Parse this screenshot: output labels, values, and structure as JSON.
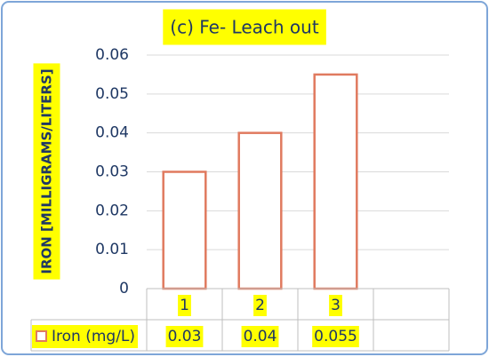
{
  "chart_data": {
    "type": "bar",
    "title": "(c) Fe- Leach out",
    "y_label": "IRON [MILLIGRAMS/LITERS]",
    "categories": [
      "1",
      "2",
      "3",
      null
    ],
    "series": [
      {
        "name": "Iron (mg/L)",
        "color": "#e07a5f",
        "values": [
          0.03,
          0.04,
          0.055,
          null
        ]
      }
    ],
    "ylim": [
      0,
      0.06
    ],
    "yticks": [
      0,
      0.01,
      0.02,
      0.03,
      0.04,
      0.05,
      0.06
    ],
    "grid": true,
    "data_table": true
  }
}
